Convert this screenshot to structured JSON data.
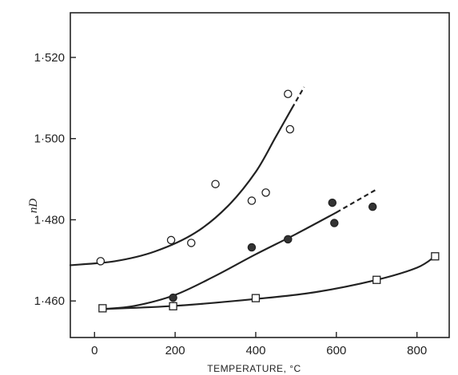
{
  "chart_data": {
    "type": "scatter",
    "xlabel": "TEMPERATURE, °C",
    "ylabel": "nD",
    "xlim": [
      -60,
      880
    ],
    "ylim": [
      1.451,
      1.531
    ],
    "x_ticks": [
      0,
      200,
      400,
      600,
      800
    ],
    "x_tick_labels": [
      "0",
      "200",
      "400",
      "600",
      "800"
    ],
    "y_ticks": [
      1.46,
      1.48,
      1.5,
      1.52
    ],
    "y_tick_labels": [
      "1·460",
      "1·480",
      "1·500",
      "1·520"
    ],
    "grid": false,
    "series": [
      {
        "marker": "open-circle",
        "points": [
          [
            15,
            1.4698
          ],
          [
            190,
            1.475
          ],
          [
            240,
            1.4743
          ],
          [
            300,
            1.4888
          ],
          [
            390,
            1.4847
          ],
          [
            425,
            1.4867
          ],
          [
            480,
            1.511
          ],
          [
            485,
            1.5023
          ]
        ],
        "curve": [
          [
            -60,
            1.4688
          ],
          [
            50,
            1.4698
          ],
          [
            150,
            1.4722
          ],
          [
            250,
            1.4768
          ],
          [
            330,
            1.4833
          ],
          [
            400,
            1.4918
          ],
          [
            450,
            1.5005
          ],
          [
            490,
            1.5075
          ],
          [
            520,
            1.5127
          ]
        ],
        "curve_dashed_from": 490
      },
      {
        "marker": "filled-circle",
        "points": [
          [
            195,
            1.4608
          ],
          [
            390,
            1.4732
          ],
          [
            480,
            1.4752
          ],
          [
            590,
            1.4842
          ],
          [
            595,
            1.4792
          ],
          [
            690,
            1.4832
          ]
        ],
        "curve": [
          [
            20,
            1.458
          ],
          [
            100,
            1.4588
          ],
          [
            200,
            1.4615
          ],
          [
            300,
            1.4662
          ],
          [
            400,
            1.4715
          ],
          [
            500,
            1.4765
          ],
          [
            600,
            1.4818
          ],
          [
            700,
            1.4875
          ]
        ],
        "curve_dashed_from": 600
      },
      {
        "marker": "open-square",
        "points": [
          [
            20,
            1.4582
          ],
          [
            195,
            1.4587
          ],
          [
            400,
            1.4607
          ],
          [
            700,
            1.4652
          ],
          [
            845,
            1.471
          ]
        ],
        "curve": [
          [
            20,
            1.458
          ],
          [
            200,
            1.4588
          ],
          [
            400,
            1.4605
          ],
          [
            550,
            1.4622
          ],
          [
            700,
            1.4652
          ],
          [
            800,
            1.4682
          ],
          [
            845,
            1.471
          ]
        ],
        "curve_dashed_from": null
      }
    ]
  }
}
